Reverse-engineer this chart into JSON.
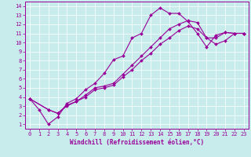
{
  "xlabel": "Windchill (Refroidissement éolien,°C)",
  "bg_color": "#c8ecec",
  "line_color": "#990099",
  "xlim": [
    -0.5,
    23.5
  ],
  "ylim": [
    0.5,
    14.5
  ],
  "xticks": [
    0,
    1,
    2,
    3,
    4,
    5,
    6,
    7,
    8,
    9,
    10,
    11,
    12,
    13,
    14,
    15,
    16,
    17,
    18,
    19,
    20,
    21,
    22,
    23
  ],
  "yticks": [
    1,
    2,
    3,
    4,
    5,
    6,
    7,
    8,
    9,
    10,
    11,
    12,
    13,
    14
  ],
  "curve1_x": [
    0,
    1,
    2,
    3,
    4,
    5,
    6,
    7,
    8,
    9,
    10,
    11,
    12,
    13,
    14,
    15,
    16,
    17,
    18,
    19,
    20,
    21,
    22,
    23
  ],
  "curve1_y": [
    3.8,
    2.6,
    1.0,
    1.8,
    3.3,
    3.8,
    4.8,
    5.5,
    6.6,
    8.1,
    8.5,
    10.5,
    11.0,
    13.0,
    13.8,
    13.2,
    13.2,
    12.3,
    11.0,
    9.5,
    10.8,
    11.1,
    11.0,
    11.0
  ],
  "curve2_x": [
    0,
    2,
    3,
    4,
    5,
    6,
    7,
    8,
    9,
    10,
    11,
    12,
    13,
    14,
    15,
    16,
    17,
    18,
    19,
    20,
    21,
    22,
    23
  ],
  "curve2_y": [
    3.8,
    2.6,
    2.2,
    3.1,
    3.5,
    4.2,
    5.0,
    5.2,
    5.5,
    6.5,
    7.5,
    8.5,
    9.5,
    10.5,
    11.5,
    12.0,
    12.4,
    12.2,
    10.5,
    10.5,
    11.1,
    11.0,
    11.0
  ],
  "curve3_x": [
    0,
    2,
    3,
    4,
    5,
    6,
    7,
    8,
    9,
    10,
    11,
    12,
    13,
    14,
    15,
    16,
    17,
    18,
    19,
    20,
    21,
    22,
    23
  ],
  "curve3_y": [
    3.8,
    2.6,
    2.2,
    3.0,
    3.5,
    4.0,
    4.8,
    5.0,
    5.3,
    6.2,
    7.0,
    8.0,
    8.8,
    9.8,
    10.5,
    11.3,
    11.8,
    11.5,
    10.5,
    9.8,
    10.2,
    11.0,
    11.0
  ],
  "xlabel_fontsize": 5.5,
  "tick_fontsize": 5.0,
  "linewidth": 0.8,
  "markersize": 2.0
}
